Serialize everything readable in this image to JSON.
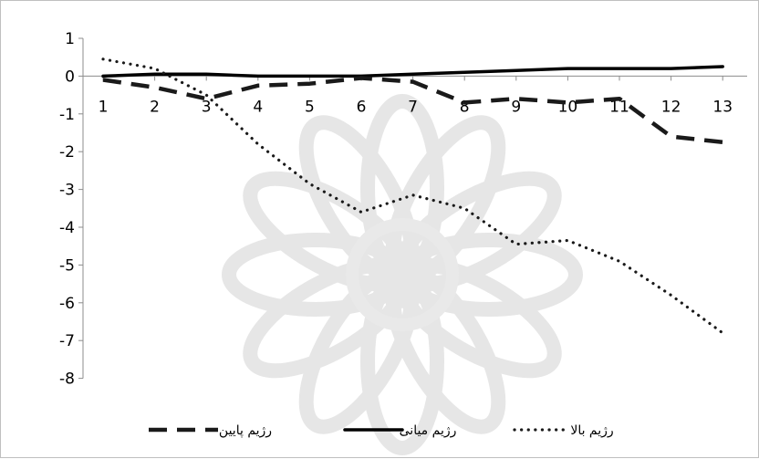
{
  "chart_data": {
    "type": "line",
    "x": [
      1,
      2,
      3,
      4,
      5,
      6,
      7,
      8,
      9,
      10,
      11,
      12,
      13
    ],
    "ylim": [
      -8,
      1
    ],
    "yticks": [
      1,
      0,
      -1,
      -2,
      -3,
      -4,
      -5,
      -6,
      -7,
      -8
    ],
    "grid": false,
    "legend_position": "bottom",
    "series": [
      {
        "name": "رژیم پایین",
        "style": "dashed",
        "color": "#1a1a1a",
        "values": [
          -0.1,
          -0.3,
          -0.6,
          -0.25,
          -0.2,
          -0.05,
          -0.15,
          -0.7,
          -0.6,
          -0.7,
          -0.6,
          -1.6,
          -1.75
        ]
      },
      {
        "name": "رژیم میانی",
        "style": "solid",
        "color": "#000000",
        "values": [
          0.0,
          0.05,
          0.05,
          0.0,
          0.0,
          0.0,
          0.05,
          0.1,
          0.15,
          0.2,
          0.2,
          0.2,
          0.25
        ]
      },
      {
        "name": "رژیم بالا",
        "style": "dotted",
        "color": "#1a1a1a",
        "values": [
          0.45,
          0.2,
          -0.5,
          -1.8,
          -2.85,
          -3.6,
          -3.15,
          -3.5,
          -4.45,
          -4.35,
          -4.9,
          -5.8,
          -6.8
        ]
      }
    ]
  }
}
